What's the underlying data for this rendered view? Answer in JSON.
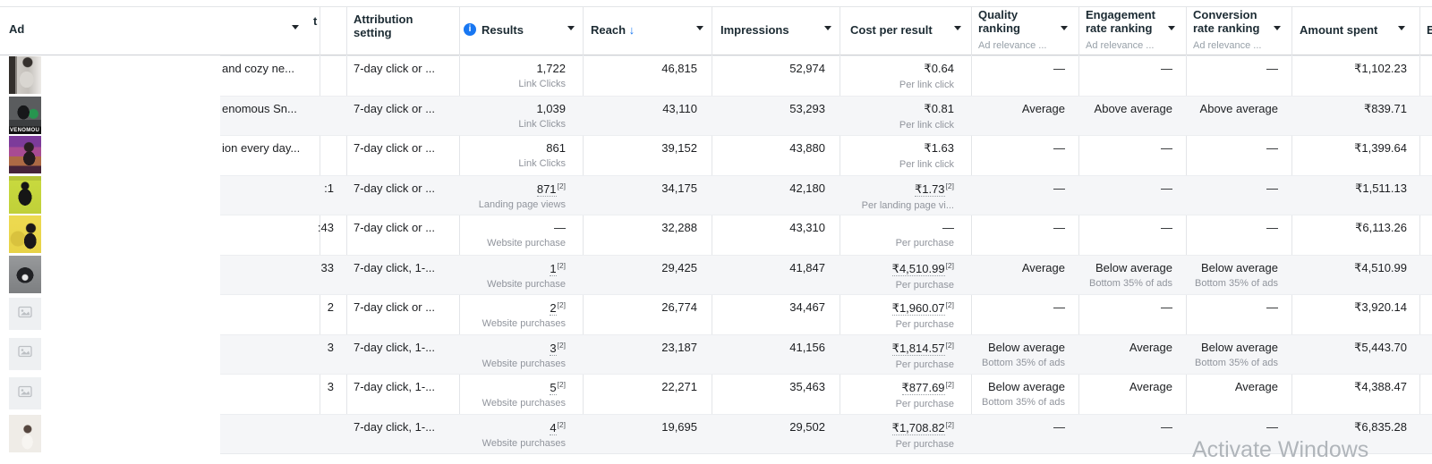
{
  "colors": {
    "accent_blue": "#1877f2",
    "stripe": "#f5f6f8",
    "sub_text": "#90949c"
  },
  "header": {
    "ad_label": "Ad",
    "covered_column_tail": "t",
    "attribution_label": "Attribution setting",
    "results_label": "Results",
    "reach_label": "Reach",
    "reach_sort_arrow": "↓",
    "impressions_label": "Impressions",
    "cost_label": "Cost per result",
    "quality_label": "Quality ranking",
    "quality_sublabel": "Ad relevance ...",
    "engagement_label": "Engagement rate ranking",
    "engagement_sublabel": "Ad relevance ...",
    "conversion_label": "Conversion rate ranking",
    "conversion_sublabel": "Ad relevance ...",
    "spent_label": "Amount spent",
    "next_column_partial": "E",
    "results_info_icon": "i"
  },
  "footnote_marker": "[2]",
  "watermark": "Activate Windows",
  "rows": [
    {
      "thumb": "t1",
      "thumb_desc": "person in grey sweatshirt",
      "name_tail": "and cozy ne...",
      "edit_tail": "",
      "attribution": "7-day click or ...",
      "results": "1,722",
      "results_sup": "",
      "results_label": "Link Clicks",
      "reach": "46,815",
      "impressions": "52,974",
      "cost": "₹0.64",
      "cost_sup": "",
      "cost_label": "Per link click",
      "quality": "—",
      "quality_sub": "",
      "engagement": "—",
      "engagement_sub": "",
      "conversion": "—",
      "conversion_sub": "",
      "spent": "₹1,102.23"
    },
    {
      "thumb": "t2",
      "thumb_desc": "black tee with green print",
      "thumb_text": "VENOMOU",
      "name_tail": "enomous Sn...",
      "edit_tail": "",
      "attribution": "7-day click or ...",
      "results": "1,039",
      "results_sup": "",
      "results_label": "Link Clicks",
      "reach": "43,110",
      "impressions": "53,293",
      "cost": "₹0.81",
      "cost_sup": "",
      "cost_label": "Per link click",
      "quality": "Average",
      "quality_sub": "",
      "engagement": "Above average",
      "engagement_sub": "",
      "conversion": "Above average",
      "conversion_sub": "",
      "spent": "₹839.71"
    },
    {
      "thumb": "t3",
      "thumb_desc": "woman in neon arcade",
      "name_tail": "ion every day...",
      "edit_tail": "",
      "attribution": "7-day click or ...",
      "results": "861",
      "results_sup": "",
      "results_label": "Link Clicks",
      "reach": "39,152",
      "impressions": "43,880",
      "cost": "₹1.63",
      "cost_sup": "",
      "cost_label": "Per link click",
      "quality": "—",
      "quality_sub": "",
      "engagement": "—",
      "engagement_sub": "",
      "conversion": "—",
      "conversion_sub": "",
      "spent": "₹1,399.64"
    },
    {
      "thumb": "t4",
      "thumb_desc": "black hoodie on lime background",
      "name_tail": "",
      "edit_tail": ":1",
      "attribution": "7-day click or ...",
      "results": "871",
      "results_sup": "[2]",
      "results_label": "Landing page views",
      "reach": "34,175",
      "impressions": "42,180",
      "cost": "₹1.73",
      "cost_sup": "[2]",
      "cost_label": "Per landing page vi...",
      "quality": "—",
      "quality_sub": "",
      "engagement": "—",
      "engagement_sub": "",
      "conversion": "—",
      "conversion_sub": "",
      "spent": "₹1,511.13"
    },
    {
      "thumb": "t5",
      "thumb_desc": "woman in black hoodie on yellow",
      "name_tail": "",
      "edit_tail": ":43",
      "attribution": "7-day click or ...",
      "results": "—",
      "results_sup": "",
      "results_label": "Website purchase",
      "reach": "32,288",
      "impressions": "43,310",
      "cost": "—",
      "cost_sup": "",
      "cost_label": "Per purchase",
      "quality": "—",
      "quality_sub": "",
      "engagement": "—",
      "engagement_sub": "",
      "conversion": "—",
      "conversion_sub": "",
      "spent": "₹6,113.26"
    },
    {
      "thumb": "t6",
      "thumb_desc": "black t-shirt flat lay",
      "name_tail": "",
      "edit_tail": "33",
      "attribution": "7-day click, 1-...",
      "results": "1",
      "results_sup": "[2]",
      "results_label": "Website purchase",
      "reach": "29,425",
      "impressions": "41,847",
      "cost": "₹4,510.99",
      "cost_sup": "[2]",
      "cost_label": "Per purchase",
      "quality": "Average",
      "quality_sub": "",
      "engagement": "Below average",
      "engagement_sub": "Bottom 35% of ads",
      "conversion": "Below average",
      "conversion_sub": "Bottom 35% of ads",
      "spent": "₹4,510.99"
    },
    {
      "thumb": "ph",
      "thumb_desc": "image placeholder",
      "name_tail": "",
      "edit_tail": "2",
      "attribution": "7-day click or ...",
      "results": "2",
      "results_sup": "[2]",
      "results_label": "Website purchases",
      "reach": "26,774",
      "impressions": "34,467",
      "cost": "₹1,960.07",
      "cost_sup": "[2]",
      "cost_label": "Per purchase",
      "quality": "—",
      "quality_sub": "",
      "engagement": "—",
      "engagement_sub": "",
      "conversion": "—",
      "conversion_sub": "",
      "spent": "₹3,920.14"
    },
    {
      "thumb": "ph",
      "thumb_desc": "image placeholder",
      "name_tail": "",
      "edit_tail": "3",
      "attribution": "7-day click, 1-...",
      "results": "3",
      "results_sup": "[2]",
      "results_label": "Website purchases",
      "reach": "23,187",
      "impressions": "41,156",
      "cost": "₹1,814.57",
      "cost_sup": "[2]",
      "cost_label": "Per purchase",
      "quality": "Below average",
      "quality_sub": "Bottom 35% of ads",
      "engagement": "Average",
      "engagement_sub": "",
      "conversion": "Below average",
      "conversion_sub": "Bottom 35% of ads",
      "spent": "₹5,443.70"
    },
    {
      "thumb": "ph",
      "thumb_desc": "image placeholder",
      "name_tail": "",
      "edit_tail": "3",
      "attribution": "7-day click, 1-...",
      "results": "5",
      "results_sup": "[2]",
      "results_label": "Website purchases",
      "reach": "22,271",
      "impressions": "35,463",
      "cost": "₹877.69",
      "cost_sup": "[2]",
      "cost_label": "Per purchase",
      "quality": "Below average",
      "quality_sub": "Bottom 35% of ads",
      "engagement": "Average",
      "engagement_sub": "",
      "conversion": "Average",
      "conversion_sub": "",
      "spent": "₹4,388.47"
    },
    {
      "thumb": "t10",
      "thumb_desc": "person in cream hoodie",
      "name_tail": "",
      "edit_tail": "",
      "attribution": "7-day click, 1-...",
      "results": "4",
      "results_sup": "[2]",
      "results_label": "Website purchases",
      "reach": "19,695",
      "impressions": "29,502",
      "cost": "₹1,708.82",
      "cost_sup": "[2]",
      "cost_label": "Per purchase",
      "quality": "—",
      "quality_sub": "",
      "engagement": "—",
      "engagement_sub": "",
      "conversion": "—",
      "conversion_sub": "",
      "spent": "₹6,835.28"
    }
  ]
}
